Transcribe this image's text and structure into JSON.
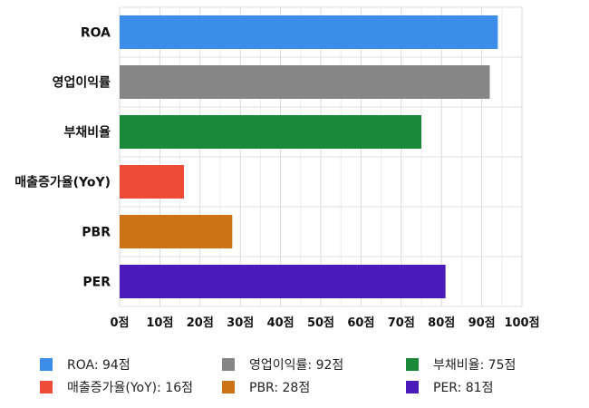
{
  "chart_data": {
    "type": "bar",
    "orientation": "horizontal",
    "categories": [
      "ROA",
      "영업이익률",
      "부채비율",
      "매출증가율(YoY)",
      "PBR",
      "PER"
    ],
    "values": [
      94,
      92,
      75,
      16,
      28,
      81
    ],
    "colors": [
      "#3b8de8",
      "#868686",
      "#1a8a3a",
      "#ee4b38",
      "#cc7318",
      "#4b1ab8"
    ],
    "xlim": [
      0,
      100
    ],
    "xticks": [
      "0점",
      "10점",
      "20점",
      "30점",
      "40점",
      "50점",
      "60점",
      "70점",
      "80점",
      "90점",
      "100점"
    ],
    "grid": true,
    "legend": {
      "placement": "bottom",
      "items": [
        "ROA: 94점",
        "영업이익률: 92점",
        "부채비율: 75점",
        "매출증가율(YoY): 16점",
        "PBR: 28점",
        "PER: 81점"
      ]
    }
  }
}
